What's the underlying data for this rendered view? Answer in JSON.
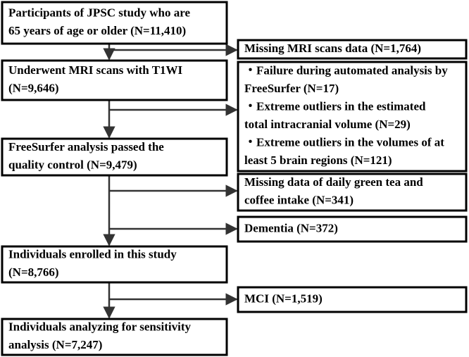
{
  "nodes": [
    {
      "lines": [
        "Participants of JPSC study who are",
        "65 years of age or older (N=11,410)"
      ]
    },
    {
      "lines": [
        "Underwent MRI scans with T1WI",
        "(N=9,646)"
      ]
    },
    {
      "lines": [
        "FreeSurfer analysis passed the",
        "quality control (N=9,479)"
      ]
    },
    {
      "lines": [
        "Individuals enrolled in this study",
        "(N=8,766)"
      ]
    },
    {
      "lines": [
        "Individuals analyzing for sensitivity",
        "analysis (N=7,247)"
      ]
    }
  ],
  "exclusions": [
    {
      "lines": [
        "Missing MRI scans data (N=1,764)"
      ]
    },
    {
      "lines": [
        "・Failure during automated analysis by",
        "FreeSurfer (N=17)",
        "・Extreme outliers in the estimated",
        "total intracranial volume (N=29)",
        "・Extreme outliers in the volumes of at",
        "least 5 brain regions (N=121)"
      ]
    },
    {
      "lines": [
        "Missing data of daily green tea and",
        "coffee intake (N=341)"
      ]
    },
    {
      "lines": [
        "Dementia (N=372)"
      ]
    },
    {
      "lines": [
        "MCI (N=1,519)"
      ]
    }
  ]
}
